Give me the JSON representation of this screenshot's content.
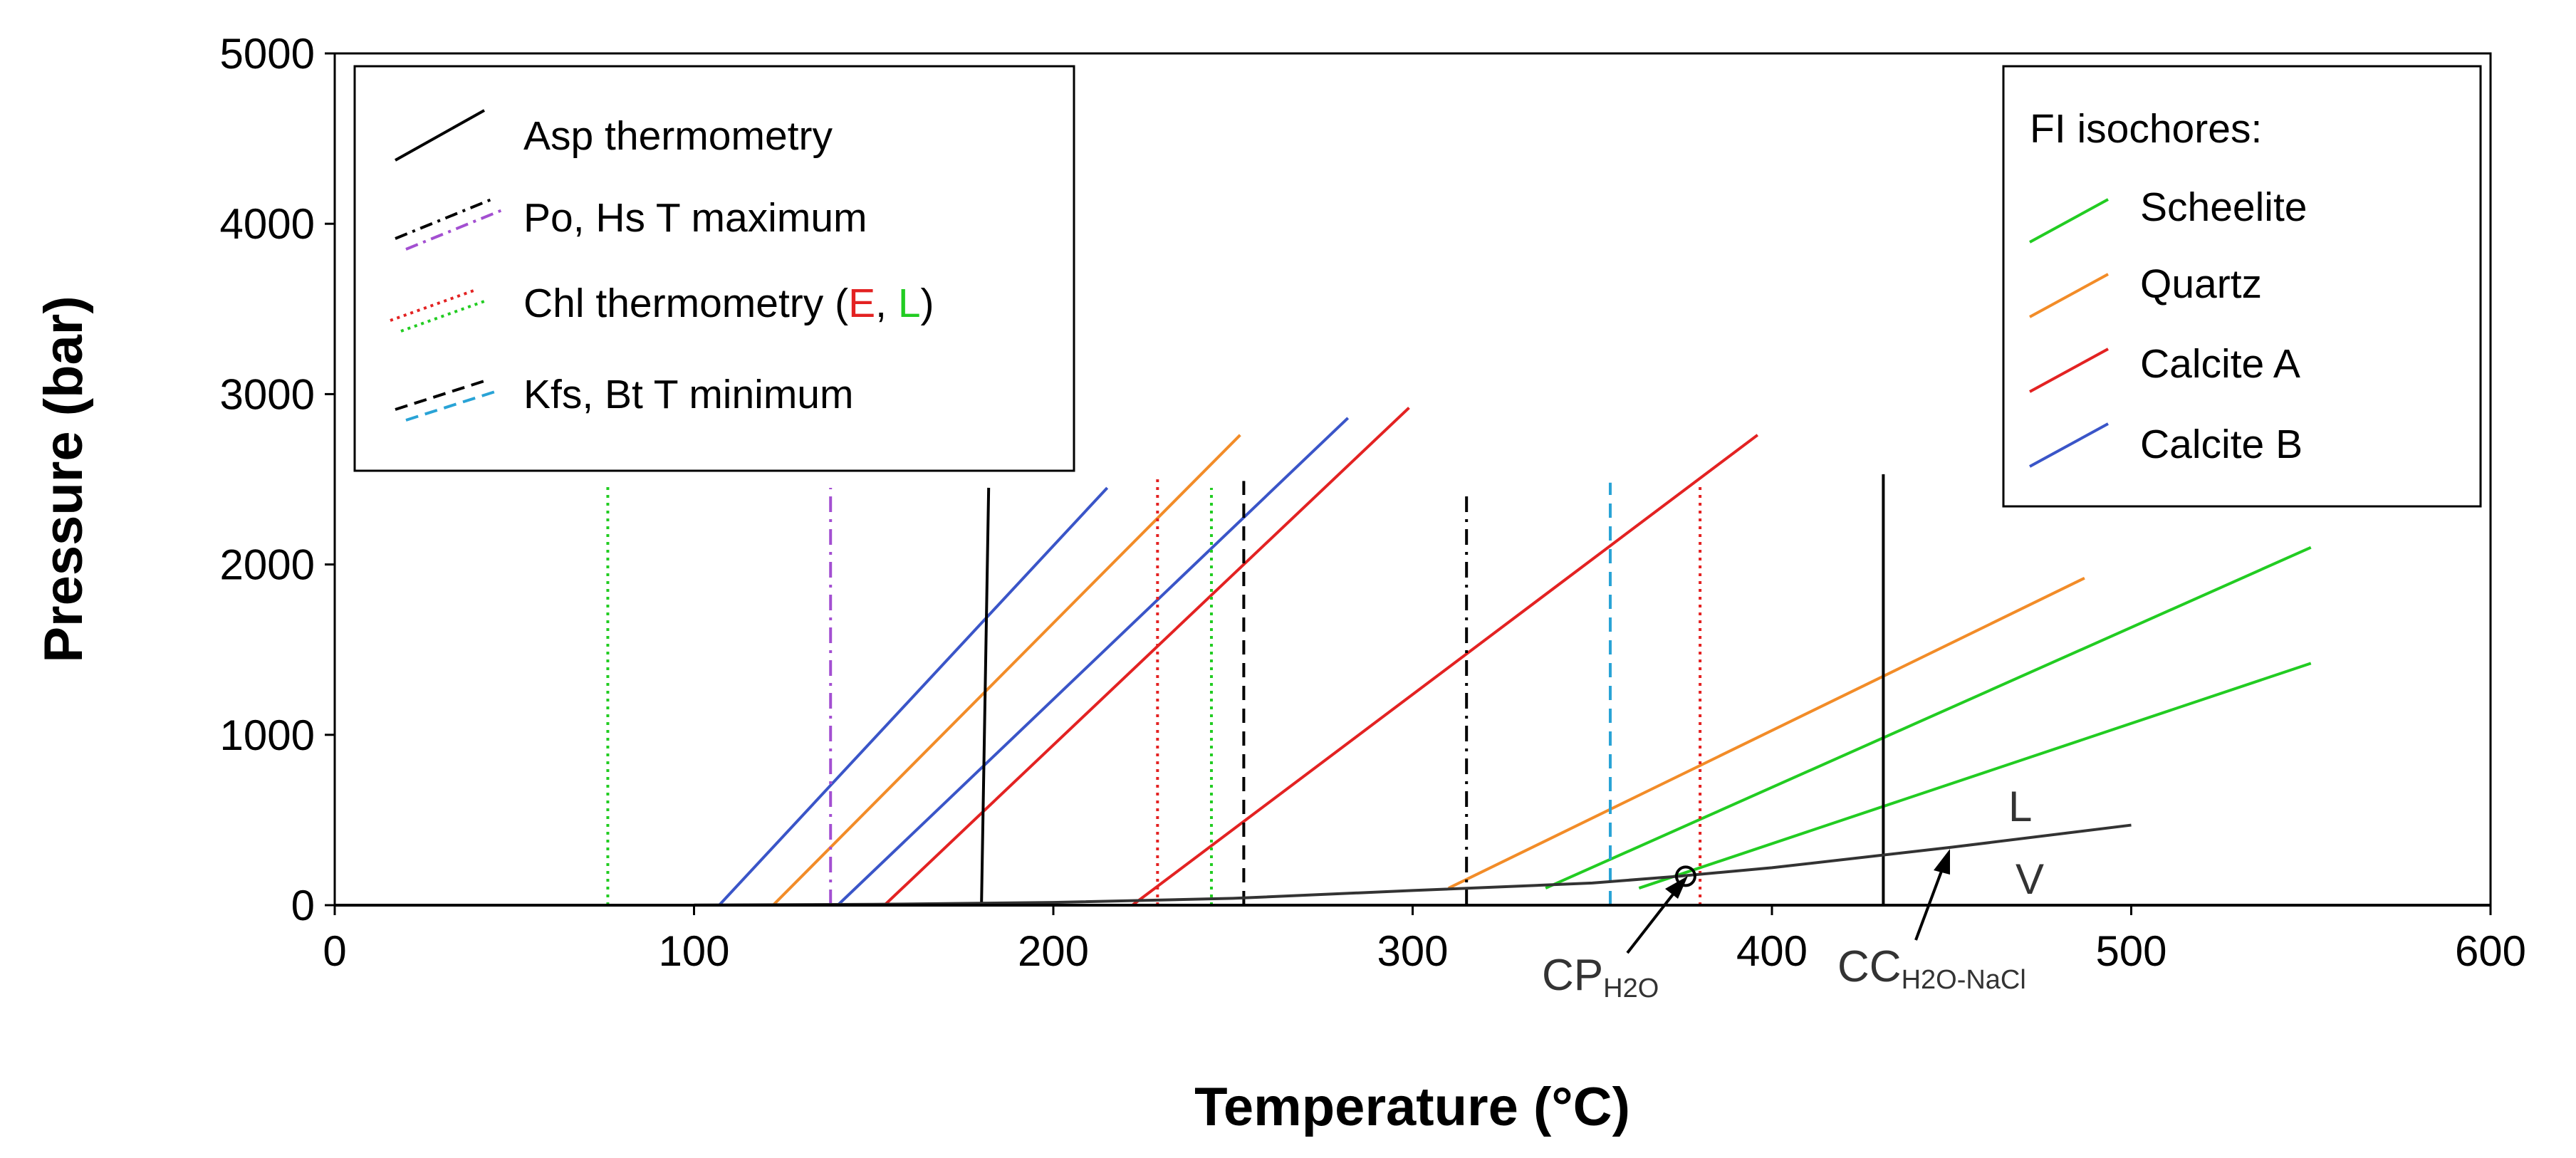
{
  "chart_data": {
    "type": "line",
    "title": "",
    "xlabel": "Temperature (°C)",
    "ylabel": "Pressure (bar)",
    "xlim": [
      0,
      600
    ],
    "ylim": [
      0,
      5000
    ],
    "xticks": [
      0,
      100,
      200,
      300,
      400,
      500,
      600
    ],
    "yticks": [
      0,
      1000,
      2000,
      3000,
      4000,
      5000
    ],
    "grid": false,
    "legend_left": {
      "placement": "top-left",
      "entries": [
        {
          "id": "asp",
          "label": "Asp thermometry"
        },
        {
          "id": "pohs",
          "label": "Po, Hs T maximum"
        },
        {
          "id": "chl",
          "label_prefix": "Chl thermometry (",
          "label_e": "E",
          "label_sep": ", ",
          "label_l": "L",
          "label_suffix": ")"
        },
        {
          "id": "kfsbt",
          "label": "Kfs, Bt T minimum"
        }
      ]
    },
    "legend_right": {
      "placement": "top-right",
      "title": "FI isochores:",
      "entries": [
        {
          "label": "Scheelite",
          "color": "#22cc22"
        },
        {
          "label": "Quartz",
          "color": "#f28c28"
        },
        {
          "label": "Calcite A",
          "color": "#e32222"
        },
        {
          "label": "Calcite B",
          "color": "#3a55c8"
        }
      ]
    },
    "colors": {
      "black": "#000000",
      "purple": "#a34fd1",
      "dotted_red": "#e32222",
      "dotted_green": "#22cc22",
      "cyan": "#29a3d6",
      "curve": "#333333",
      "annot": "#333333",
      "label_e": "#e32222",
      "label_l": "#22cc22"
    },
    "series": [
      {
        "name": "Scheelite",
        "color": "#22cc22",
        "dash": "solid",
        "points": [
          [
            337,
            100
          ],
          [
            550,
            2100
          ]
        ]
      },
      {
        "name": "Scheelite",
        "color": "#22cc22",
        "dash": "solid",
        "points": [
          [
            363,
            100
          ],
          [
            550,
            1420
          ]
        ]
      },
      {
        "name": "Quartz",
        "color": "#f28c28",
        "dash": "solid",
        "points": [
          [
            122,
            0
          ],
          [
            252,
            2760
          ]
        ]
      },
      {
        "name": "Quartz",
        "color": "#f28c28",
        "dash": "solid",
        "points": [
          [
            310,
            100
          ],
          [
            487,
            1920
          ]
        ]
      },
      {
        "name": "Calcite A",
        "color": "#e32222",
        "dash": "solid",
        "points": [
          [
            153,
            0
          ],
          [
            299,
            2920
          ]
        ]
      },
      {
        "name": "Calcite A",
        "color": "#e32222",
        "dash": "solid",
        "points": [
          [
            222,
            0
          ],
          [
            396,
            2760
          ]
        ]
      },
      {
        "name": "Calcite B",
        "color": "#3a55c8",
        "dash": "solid",
        "points": [
          [
            107,
            0
          ],
          [
            215,
            2450
          ]
        ]
      },
      {
        "name": "Calcite B",
        "color": "#3a55c8",
        "dash": "solid",
        "points": [
          [
            140,
            0
          ],
          [
            282,
            2860
          ]
        ]
      },
      {
        "name": "Asp thermometry",
        "color": "#000000",
        "dash": "solid",
        "points": [
          [
            180,
            0
          ],
          [
            182,
            2450
          ]
        ]
      },
      {
        "name": "Asp thermometry",
        "color": "#000000",
        "dash": "solid",
        "points": [
          [
            431,
            0
          ],
          [
            431,
            2530
          ]
        ]
      },
      {
        "name": "Po, Hs T maximum",
        "color": "#a34fd1",
        "dash": "dashdot",
        "points": [
          [
            138,
            0
          ],
          [
            138,
            2450
          ]
        ]
      },
      {
        "name": "Po, Hs T maximum",
        "color": "#000000",
        "dash": "dashdot",
        "points": [
          [
            315,
            0
          ],
          [
            315,
            2400
          ]
        ]
      },
      {
        "name": "Chl thermometry E",
        "color": "#e32222",
        "dash": "dotted",
        "points": [
          [
            229,
            0
          ],
          [
            229,
            2520
          ]
        ]
      },
      {
        "name": "Chl thermometry E",
        "color": "#e32222",
        "dash": "dotted",
        "points": [
          [
            380,
            0
          ],
          [
            380,
            2470
          ]
        ]
      },
      {
        "name": "Chl thermometry L",
        "color": "#22cc22",
        "dash": "dotted",
        "points": [
          [
            76,
            0
          ],
          [
            76,
            2480
          ]
        ]
      },
      {
        "name": "Chl thermometry L",
        "color": "#22cc22",
        "dash": "dotted",
        "points": [
          [
            244,
            0
          ],
          [
            244,
            2450
          ]
        ]
      },
      {
        "name": "Kfs, Bt T minimum",
        "color": "#000000",
        "dash": "dashed",
        "points": [
          [
            253,
            0
          ],
          [
            253,
            2490
          ]
        ]
      },
      {
        "name": "Kfs, Bt T minimum",
        "color": "#29a3d6",
        "dash": "dashed",
        "points": [
          [
            355,
            0
          ],
          [
            355,
            2480
          ]
        ]
      },
      {
        "name": "L-V curve",
        "color": "#333333",
        "dash": "solid",
        "points": [
          [
            100,
            1
          ],
          [
            150,
            5
          ],
          [
            200,
            16
          ],
          [
            250,
            40
          ],
          [
            300,
            86
          ],
          [
            350,
            130
          ],
          [
            374,
            170
          ],
          [
            400,
            220
          ],
          [
            450,
            340
          ],
          [
            500,
            470
          ]
        ]
      }
    ],
    "annotations": {
      "L": "L",
      "V": "V",
      "cp": {
        "base": "CP",
        "sub": "H2O",
        "point": [
          376,
          170
        ]
      },
      "cc": {
        "base": "CC",
        "sub": "H2O-NaCl"
      }
    }
  }
}
